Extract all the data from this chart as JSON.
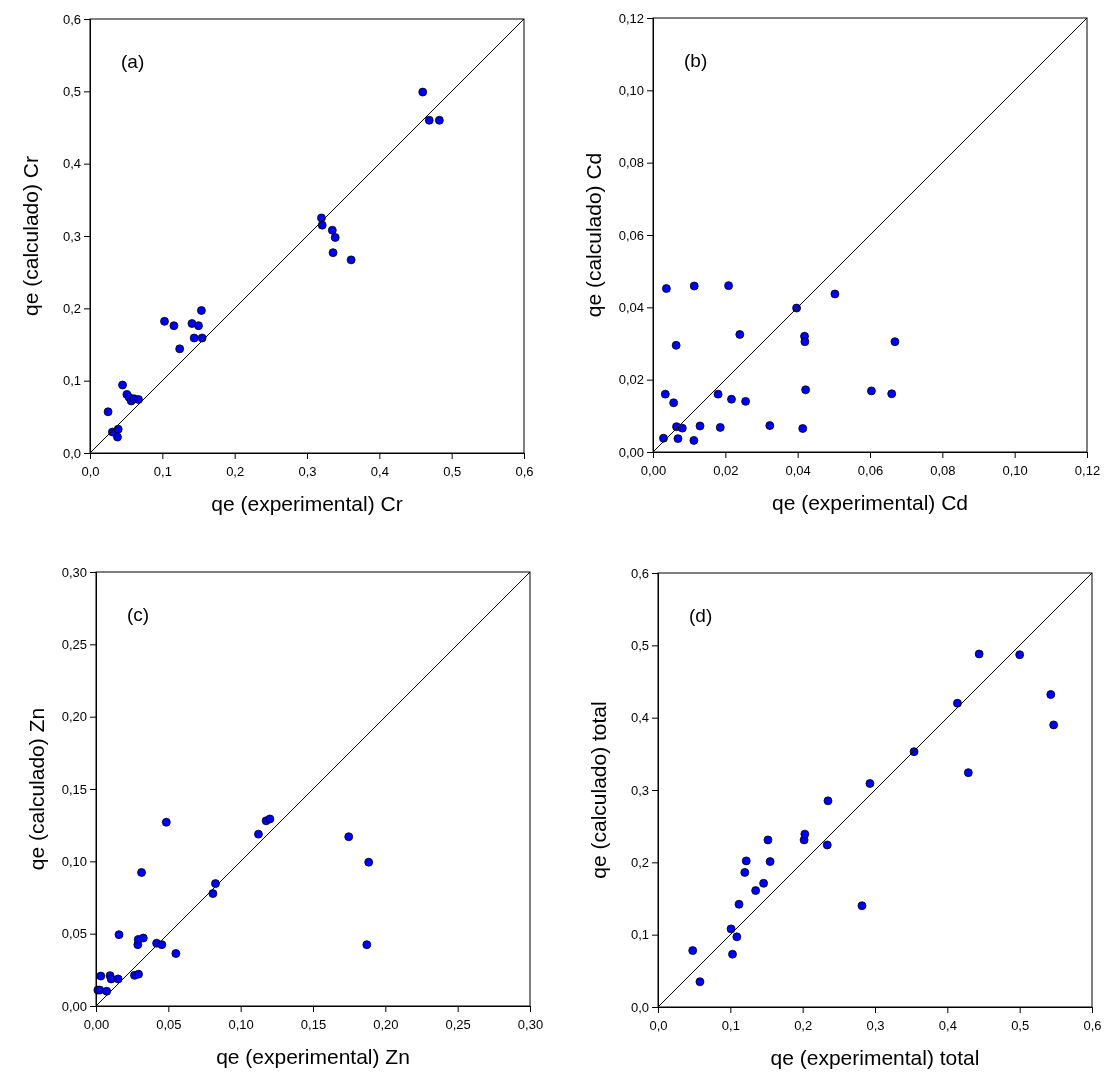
{
  "chart_data": [
    {
      "type": "scatter",
      "xlabel": "qe (experimental) Cr",
      "ylabel": "qe (calculado) Cr",
      "annotations": [
        "(a)"
      ],
      "xlim": [
        0,
        0.6
      ],
      "ylim": [
        0,
        0.6
      ],
      "xticks": [
        {
          "value": 0,
          "label": "0,0"
        },
        {
          "value": 0.1,
          "label": "0,1"
        },
        {
          "value": 0.2,
          "label": "0,2"
        },
        {
          "value": 0.3,
          "label": "0,3"
        },
        {
          "value": 0.4,
          "label": "0,4"
        },
        {
          "value": 0.5,
          "label": "0,5"
        },
        {
          "value": 0.6,
          "label": "0,6"
        }
      ],
      "yticks": [
        {
          "value": 0,
          "label": "0,0"
        },
        {
          "value": 0.1,
          "label": "0,1"
        },
        {
          "value": 0.2,
          "label": "0,2"
        },
        {
          "value": 0.3,
          "label": "0,3"
        },
        {
          "value": 0.4,
          "label": "0,4"
        },
        {
          "value": 0.5,
          "label": "0,5"
        },
        {
          "value": 0.6,
          "label": "0,6"
        }
      ],
      "series": [
        {
          "marker": "circle",
          "color": "#0000ff",
          "x": [
            0.025,
            0.031,
            0.038,
            0.039,
            0.045,
            0.051,
            0.054,
            0.057,
            0.061,
            0.067,
            0.103,
            0.116,
            0.124,
            0.141,
            0.144,
            0.15,
            0.154,
            0.155,
            0.32,
            0.321,
            0.335,
            0.339,
            0.336,
            0.361,
            0.46,
            0.469,
            0.483
          ],
          "values": [
            0.057,
            0.029,
            0.022,
            0.033,
            0.094,
            0.081,
            0.077,
            0.072,
            0.075,
            0.074,
            0.182,
            0.176,
            0.144,
            0.179,
            0.159,
            0.176,
            0.197,
            0.159,
            0.325,
            0.315,
            0.308,
            0.298,
            0.277,
            0.267,
            0.499,
            0.46,
            0.46
          ]
        },
        {
          "type": "line",
          "marker": "none",
          "color": "#000000",
          "x": [
            0,
            0.6
          ],
          "values": [
            0,
            0.6
          ]
        }
      ]
    },
    {
      "type": "scatter",
      "xlabel": "qe (experimental) Cd",
      "ylabel": "qe (calculado) Cd",
      "annotations": [
        "(b)"
      ],
      "xlim": [
        0,
        0.12
      ],
      "ylim": [
        0,
        0.12
      ],
      "xticks": [
        {
          "value": 0,
          "label": "0,00"
        },
        {
          "value": 0.02,
          "label": "0,02"
        },
        {
          "value": 0.04,
          "label": "0,04"
        },
        {
          "value": 0.06,
          "label": "0,06"
        },
        {
          "value": 0.08,
          "label": "0,08"
        },
        {
          "value": 0.1,
          "label": "0,10"
        },
        {
          "value": 0.12,
          "label": "0,12"
        }
      ],
      "yticks": [
        {
          "value": 0,
          "label": "0,00"
        },
        {
          "value": 0.02,
          "label": "0,02"
        },
        {
          "value": 0.04,
          "label": "0,04"
        },
        {
          "value": 0.06,
          "label": "0,06"
        },
        {
          "value": 0.08,
          "label": "0,08"
        },
        {
          "value": 0.1,
          "label": "0,10"
        },
        {
          "value": 0.12,
          "label": "0,12"
        }
      ],
      "series": [
        {
          "marker": "circle",
          "color": "#0000ff",
          "x": [
            0.0029,
            0.0037,
            0.0034,
            0.0057,
            0.0064,
            0.0065,
            0.0069,
            0.0081,
            0.0114,
            0.0113,
            0.013,
            0.018,
            0.0186,
            0.0209,
            0.0217,
            0.024,
            0.0256,
            0.0323,
            0.0397,
            0.0414,
            0.0419,
            0.042,
            0.0422,
            0.0503,
            0.0604,
            0.066,
            0.0669
          ],
          "values": [
            0.0038,
            0.0452,
            0.016,
            0.0136,
            0.0295,
            0.007,
            0.0037,
            0.0066,
            0.0459,
            0.0032,
            0.0072,
            0.016,
            0.0068,
            0.046,
            0.0146,
            0.0325,
            0.014,
            0.0073,
            0.0398,
            0.0065,
            0.032,
            0.0305,
            0.0172,
            0.0437,
            0.0169,
            0.0161,
            0.0305
          ]
        },
        {
          "type": "line",
          "marker": "none",
          "color": "#000000",
          "x": [
            0,
            0.12
          ],
          "values": [
            0,
            0.12
          ]
        }
      ]
    },
    {
      "type": "scatter",
      "xlabel": "qe (experimental) Zn",
      "ylabel": "qe (calculado) Zn",
      "annotations": [
        "(c)"
      ],
      "xlim": [
        0,
        0.3
      ],
      "ylim": [
        0,
        0.3
      ],
      "xticks": [
        {
          "value": 0,
          "label": "0,00"
        },
        {
          "value": 0.05,
          "label": "0,05"
        },
        {
          "value": 0.1,
          "label": "0,10"
        },
        {
          "value": 0.15,
          "label": "0,15"
        },
        {
          "value": 0.2,
          "label": "0,20"
        },
        {
          "value": 0.25,
          "label": "0,25"
        },
        {
          "value": 0.3,
          "label": "0,30"
        }
      ],
      "yticks": [
        {
          "value": 0,
          "label": "0,00"
        },
        {
          "value": 0.05,
          "label": "0,05"
        },
        {
          "value": 0.1,
          "label": "0,10"
        },
        {
          "value": 0.15,
          "label": "0,15"
        },
        {
          "value": 0.2,
          "label": "0,20"
        },
        {
          "value": 0.25,
          "label": "0,25"
        },
        {
          "value": 0.3,
          "label": "0,30"
        }
      ],
      "series": [
        {
          "marker": "circle",
          "color": "#0000ff",
          "x": [
            0.0013,
            0.0026,
            0.0033,
            0.0074,
            0.0097,
            0.0105,
            0.0153,
            0.0159,
            0.0266,
            0.0294,
            0.0289,
            0.0292,
            0.0327,
            0.0315,
            0.0419,
            0.0455,
            0.0486,
            0.0552,
            0.0808,
            0.0826,
            0.1123,
            0.1176,
            0.1202,
            0.1747,
            0.1885,
            0.1872
          ],
          "values": [
            0.011,
            0.011,
            0.0207,
            0.0102,
            0.021,
            0.0187,
            0.0187,
            0.0493,
            0.0212,
            0.022,
            0.0424,
            0.046,
            0.047,
            0.0923,
            0.0434,
            0.0424,
            0.127,
            0.0363,
            0.0777,
            0.0846,
            0.1188,
            0.128,
            0.1293,
            0.117,
            0.0994,
            0.0424
          ]
        },
        {
          "type": "line",
          "marker": "none",
          "color": "#000000",
          "x": [
            0,
            0.3
          ],
          "values": [
            0,
            0.3
          ]
        }
      ]
    },
    {
      "type": "scatter",
      "xlabel": "qe (experimental) total",
      "ylabel": "qe (calculado) total",
      "annotations": [
        "(d)"
      ],
      "xlim": [
        0,
        0.6
      ],
      "ylim": [
        0,
        0.6
      ],
      "xticks": [
        {
          "value": 0,
          "label": "0,0"
        },
        {
          "value": 0.1,
          "label": "0,1"
        },
        {
          "value": 0.2,
          "label": "0,2"
        },
        {
          "value": 0.3,
          "label": "0,3"
        },
        {
          "value": 0.4,
          "label": "0,4"
        },
        {
          "value": 0.5,
          "label": "0,5"
        },
        {
          "value": 0.6,
          "label": "0,6"
        }
      ],
      "yticks": [
        {
          "value": 0,
          "label": "0,0"
        },
        {
          "value": 0.1,
          "label": "0,1"
        },
        {
          "value": 0.2,
          "label": "0,2"
        },
        {
          "value": 0.3,
          "label": "0,3"
        },
        {
          "value": 0.4,
          "label": "0,4"
        },
        {
          "value": 0.5,
          "label": "0,5"
        },
        {
          "value": 0.6,
          "label": "0,6"
        }
      ],
      "series": [
        {
          "marker": "circle",
          "color": "#0000ff",
          "x": [
            0.048,
            0.058,
            0.101,
            0.103,
            0.109,
            0.112,
            0.12,
            0.122,
            0.135,
            0.146,
            0.152,
            0.155,
            0.202,
            0.203,
            0.234,
            0.235,
            0.282,
            0.293,
            0.354,
            0.414,
            0.429,
            0.444,
            0.5,
            0.543,
            0.547
          ],
          "values": [
            0.078,
            0.035,
            0.108,
            0.073,
            0.097,
            0.142,
            0.186,
            0.202,
            0.161,
            0.171,
            0.231,
            0.201,
            0.231,
            0.239,
            0.224,
            0.285,
            0.14,
            0.309,
            0.353,
            0.42,
            0.324,
            0.488,
            0.487,
            0.432,
            0.39
          ]
        },
        {
          "type": "line",
          "marker": "none",
          "color": "#000000",
          "x": [
            0,
            0.6
          ],
          "values": [
            0,
            0.6
          ]
        }
      ]
    }
  ]
}
